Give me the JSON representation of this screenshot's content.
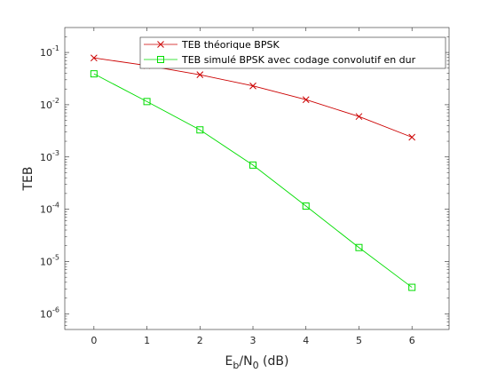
{
  "chart_data": {
    "type": "line",
    "y_scale": "log",
    "xlabel": {
      "main": "E",
      "sub1": "b",
      "mid": "/N",
      "sub2": "0",
      "tail": " (dB)"
    },
    "ylabel": "TEB",
    "xlim": [
      -0.55,
      6.7
    ],
    "ylim": [
      5e-07,
      0.3
    ],
    "x_ticks": [
      0,
      1,
      2,
      3,
      4,
      5,
      6
    ],
    "x_tick_labels": [
      "0",
      "1",
      "2",
      "3",
      "4",
      "5",
      "6"
    ],
    "y_ticks": [
      {
        "base": "10",
        "exp": "-1",
        "value": 0.1
      },
      {
        "base": "10",
        "exp": "-2",
        "value": 0.01
      },
      {
        "base": "10",
        "exp": "-3",
        "value": 0.001
      },
      {
        "base": "10",
        "exp": "-4",
        "value": 0.0001
      },
      {
        "base": "10",
        "exp": "-5",
        "value": 1e-05
      },
      {
        "base": "10",
        "exp": "-6",
        "value": 1e-06
      }
    ],
    "grid": false,
    "legend_position": "top-right",
    "series": [
      {
        "name": "TEB théorique BPSK",
        "color": "#cc0000",
        "marker": "x",
        "x": [
          0,
          1,
          2,
          3,
          4,
          5,
          6
        ],
        "values": [
          0.0786,
          0.0563,
          0.0375,
          0.0229,
          0.0125,
          0.00595,
          0.00239
        ]
      },
      {
        "name": "TEB simulé BPSK avec codage convolutif en dur",
        "color": "#00dd00",
        "marker": "square",
        "x": [
          0,
          1,
          2,
          3,
          4,
          5,
          6
        ],
        "values": [
          0.039,
          0.0115,
          0.0033,
          0.0007,
          0.000115,
          1.85e-05,
          3.2e-06
        ]
      }
    ]
  }
}
